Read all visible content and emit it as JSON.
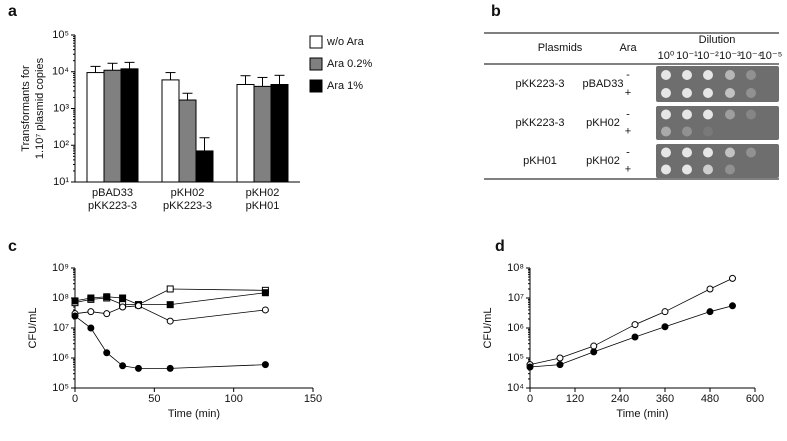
{
  "chart_data": [
    {
      "type": "bar",
      "panel": "a",
      "y_label": [
        "Transformants for",
        "1.10⁷ plasmid copies"
      ],
      "log_y": true,
      "ylim": [
        10,
        100000
      ],
      "yticks": [
        {
          "value": 10,
          "label": "10¹"
        },
        {
          "value": 100,
          "label": "10²"
        },
        {
          "value": 1000,
          "label": "10³"
        },
        {
          "value": 10000,
          "label": "10⁴"
        },
        {
          "value": 100000,
          "label": "10⁵"
        }
      ],
      "categories": [
        [
          "pBAD33",
          "pKK223-3"
        ],
        [
          "pKH02",
          "pKK223-3"
        ],
        [
          "pKH02",
          "pKH01"
        ]
      ],
      "series": [
        {
          "name": "w/o Ara",
          "color": "#ffffff",
          "values": [
            9500,
            6000,
            4500
          ],
          "errors": [
            4500,
            3500,
            3300
          ]
        },
        {
          "name": "Ara 0.2%",
          "color": "#808080",
          "values": [
            11000,
            1700,
            4000
          ],
          "errors": [
            6000,
            900,
            3000
          ]
        },
        {
          "name": "Ara 1%",
          "color": "#000000",
          "values": [
            12000,
            70,
            4500
          ],
          "errors": [
            6000,
            90,
            3500
          ]
        }
      ]
    },
    {
      "type": "line",
      "panel": "c",
      "y_label": "CFU/mL",
      "x_label": "Time (min)",
      "log_y": true,
      "ylim": [
        100000,
        1000000000
      ],
      "yticks": [
        {
          "value": 100000,
          "label": "10⁵"
        },
        {
          "value": 1000000,
          "label": "10⁶"
        },
        {
          "value": 10000000,
          "label": "10⁷"
        },
        {
          "value": 100000000,
          "label": "10⁸"
        },
        {
          "value": 1000000000,
          "label": "10⁹"
        }
      ],
      "xlim": [
        0,
        150
      ],
      "xticks": [
        0,
        50,
        100,
        150
      ],
      "x": [
        0,
        10,
        20,
        30,
        40,
        60,
        120
      ],
      "series": [
        {
          "color": "#000000",
          "marker": "square",
          "fill": "#ffffff",
          "values": [
            70000000,
            90000000,
            100000000,
            60000000,
            60000000,
            200000000,
            180000000
          ]
        },
        {
          "color": "#000000",
          "marker": "square",
          "fill": "#000000",
          "values": [
            80000000,
            100000000,
            110000000,
            100000000,
            60000000,
            60000000,
            150000000
          ]
        },
        {
          "color": "#000000",
          "marker": "circle",
          "fill": "#ffffff",
          "values": [
            30000000,
            35000000,
            30000000,
            50000000,
            55000000,
            17000000,
            40000000
          ]
        },
        {
          "color": "#000000",
          "marker": "circle",
          "fill": "#000000",
          "values": [
            25000000,
            10000000,
            1500000,
            550000,
            450000,
            450000,
            600000
          ]
        }
      ]
    },
    {
      "type": "line",
      "panel": "d",
      "y_label": "CFU/mL",
      "x_label": "Time (min)",
      "log_y": true,
      "ylim": [
        10000,
        100000000
      ],
      "yticks": [
        {
          "value": 10000,
          "label": "10⁴"
        },
        {
          "value": 100000,
          "label": "10⁵"
        },
        {
          "value": 1000000,
          "label": "10⁶"
        },
        {
          "value": 10000000,
          "label": "10⁷"
        },
        {
          "value": 100000000,
          "label": "10⁸"
        }
      ],
      "xlim": [
        0,
        600
      ],
      "xticks": [
        0,
        120,
        240,
        360,
        480,
        600
      ],
      "x": [
        0,
        80,
        170,
        280,
        360,
        480,
        540
      ],
      "series": [
        {
          "color": "#000000",
          "marker": "circle",
          "fill": "#ffffff",
          "values": [
            60000,
            100000,
            250000,
            1300000,
            3500000,
            20000000,
            45000000
          ]
        },
        {
          "color": "#000000",
          "marker": "circle",
          "fill": "#000000",
          "values": [
            50000,
            60000,
            160000,
            500000,
            1100000,
            3500000,
            5500000
          ]
        }
      ]
    }
  ],
  "plate_table": {
    "panel": "b",
    "headers": [
      "Plasmids",
      "Ara",
      "Dilution"
    ],
    "dilutions": [
      "10⁰",
      "10⁻¹",
      "10⁻²",
      "10⁻³",
      "10⁻⁴",
      "10⁻⁵"
    ],
    "rows": [
      {
        "plasmids": [
          "pKK223-3",
          "pBAD33"
        ],
        "ara": [
          "-",
          "+"
        ]
      },
      {
        "plasmids": [
          "pKK223-3",
          "pKH02"
        ],
        "ara": [
          "-",
          "+"
        ]
      },
      {
        "plasmids": [
          "pKH01",
          "pKH02"
        ],
        "ara": [
          "-",
          "+"
        ]
      }
    ]
  }
}
